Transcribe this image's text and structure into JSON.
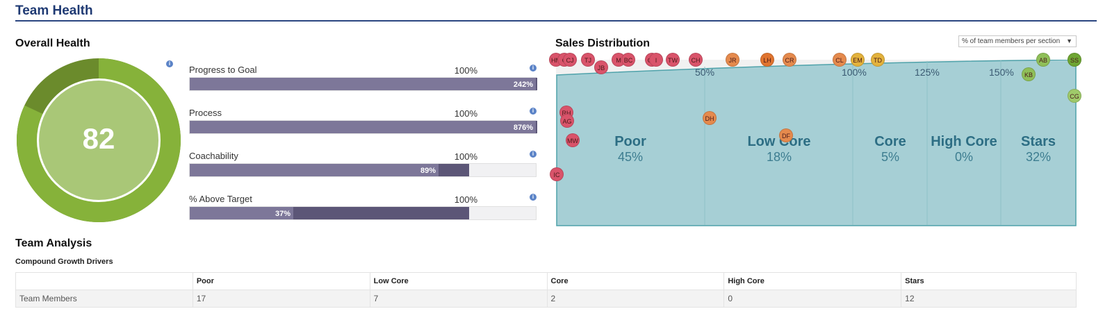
{
  "page": {
    "title": "Team Health"
  },
  "overall": {
    "title": "Overall Health",
    "score": "82",
    "score_fraction": 0.82,
    "colors": {
      "outer_light": "#86b23a",
      "outer_dark": "#6b8b2c",
      "inner": "#a9c777"
    }
  },
  "metrics": [
    {
      "label": "Progress to Goal",
      "target": "100%",
      "pct_label": "242%",
      "fill": 1.0,
      "dark_fill": 1.0
    },
    {
      "label": "Process",
      "target": "100%",
      "pct_label": "876%",
      "fill": 1.0,
      "dark_fill": 1.0
    },
    {
      "label": "Coachability",
      "target": "100%",
      "pct_label": "89%",
      "fill": 0.89,
      "dark_fill": 1.0
    },
    {
      "label": "% Above Target",
      "target": "100%",
      "pct_label": "37%",
      "fill": 0.37,
      "dark_fill": 1.0
    }
  ],
  "distribution": {
    "title": "Sales Distribution",
    "dropdown": "% of team members per section",
    "axis_ticks": [
      "50%",
      "100%",
      "125%",
      "150%"
    ],
    "sections": [
      {
        "name": "Poor",
        "pct": "45%"
      },
      {
        "name": "Low Core",
        "pct": "18%"
      },
      {
        "name": "Core",
        "pct": "5%"
      },
      {
        "name": "High Core",
        "pct": "0%"
      },
      {
        "name": "Stars",
        "pct": "32%"
      }
    ],
    "members": [
      {
        "initials": "HM",
        "color": "#d9536a"
      },
      {
        "initials": "C",
        "color": "#d9536a"
      },
      {
        "initials": "CJ",
        "color": "#d9536a"
      },
      {
        "initials": "TJ",
        "color": "#d9536a"
      },
      {
        "initials": "JB",
        "color": "#d9536a"
      },
      {
        "initials": "M",
        "color": "#d9536a"
      },
      {
        "initials": "BC",
        "color": "#d9536a"
      },
      {
        "initials": "CB",
        "color": "#d9536a"
      },
      {
        "initials": "I",
        "color": "#d9536a"
      },
      {
        "initials": "TW",
        "color": "#d9536a"
      },
      {
        "initials": "CH",
        "color": "#d9536a"
      },
      {
        "initials": "JR",
        "color": "#e58a4d"
      },
      {
        "initials": "LH",
        "color": "#e0742f"
      },
      {
        "initials": "CR",
        "color": "#e58a4d"
      },
      {
        "initials": "CL",
        "color": "#e58a4d"
      },
      {
        "initials": "EM",
        "color": "#e3b23c"
      },
      {
        "initials": "TD",
        "color": "#e3b23c"
      },
      {
        "initials": "AB",
        "color": "#8fbf58"
      },
      {
        "initials": "SS",
        "color": "#6ea532"
      },
      {
        "initials": "KB",
        "color": "#8fbf58"
      },
      {
        "initials": "CG",
        "color": "#9fca6a"
      },
      {
        "initials": "RH",
        "color": "#d9536a"
      },
      {
        "initials": "AG",
        "color": "#d9536a"
      },
      {
        "initials": "MW",
        "color": "#d9536a"
      },
      {
        "initials": "IC",
        "color": "#d9536a"
      },
      {
        "initials": "DH",
        "color": "#e58a4d"
      },
      {
        "initials": "DF",
        "color": "#e58a4d"
      }
    ],
    "colors": {
      "area": "#a6cfd5",
      "area_border": "#4fa2aa",
      "top_band": "#f1f1f1"
    }
  },
  "analysis": {
    "title": "Team Analysis",
    "subtitle": "Compound Growth Drivers",
    "columns": [
      "",
      "Poor",
      "Low Core",
      "Core",
      "High Core",
      "Stars"
    ],
    "rows": [
      {
        "label": "Team Members",
        "values": [
          "17",
          "7",
          "2",
          "0",
          "12"
        ]
      }
    ]
  }
}
